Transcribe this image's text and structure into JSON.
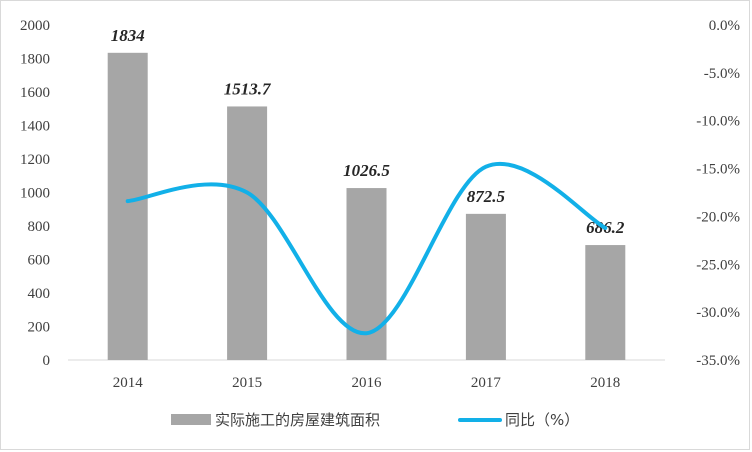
{
  "chart_data": {
    "type": "bar",
    "categories": [
      "2014",
      "2015",
      "2016",
      "2017",
      "2018"
    ],
    "series": [
      {
        "name": "实际施工的房屋建筑面积",
        "type": "bar",
        "axis": "left",
        "values": [
          1834,
          1513.7,
          1026.5,
          872.5,
          686.2
        ],
        "labels": [
          "1834",
          "1513.7",
          "1026.5",
          "872.5",
          "686.2"
        ],
        "color": "#a6a6a6"
      },
      {
        "name": "同比（%）",
        "type": "line",
        "axis": "right",
        "values": [
          -18.4,
          -17.5,
          -32.2,
          -14.8,
          -21.2
        ],
        "color": "#12b0e8"
      }
    ],
    "y_left": {
      "min": 0,
      "max": 2000,
      "step": 200,
      "ticks": [
        "0",
        "200",
        "400",
        "600",
        "800",
        "1000",
        "1200",
        "1400",
        "1600",
        "1800",
        "2000"
      ]
    },
    "y_right": {
      "min": -35,
      "max": 0,
      "step": 5,
      "ticks": [
        "0.0%",
        "-5.0%",
        "-10.0%",
        "-15.0%",
        "-20.0%",
        "-25.0%",
        "-30.0%",
        "-35.0%"
      ]
    },
    "grid": false,
    "legend_position": "bottom"
  }
}
